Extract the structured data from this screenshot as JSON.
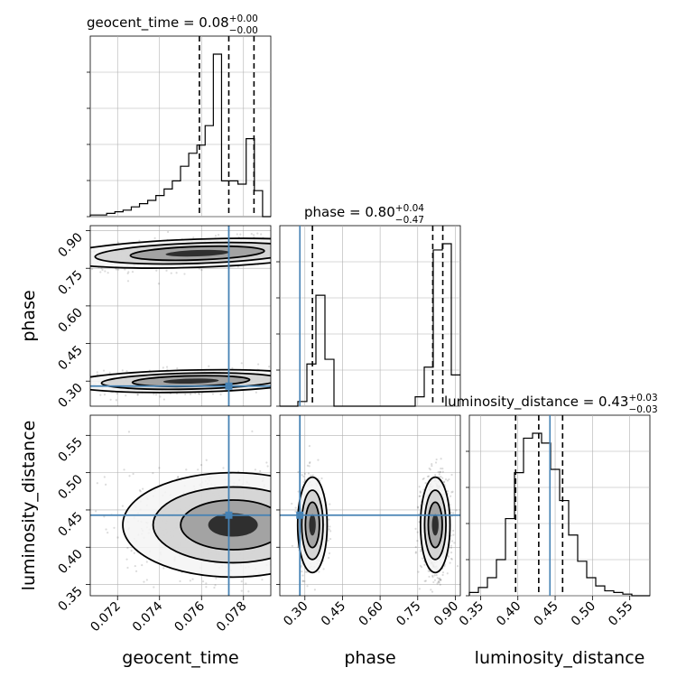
{
  "colors": {
    "truth": "#4682b4",
    "line": "#000000",
    "grid": "#b0b0b0"
  },
  "chart_data": {
    "type": "corner",
    "parameters": [
      {
        "name": "geocent_time",
        "label": "geocent_time",
        "range": [
          0.0707,
          0.0793
        ],
        "ticks": [
          0.072,
          0.074,
          0.076,
          0.078
        ],
        "tick_labels": [
          "0.072",
          "0.074",
          "0.076",
          "0.078"
        ],
        "truth": 0.0773,
        "quantiles": [
          0.0759,
          0.0773,
          0.0785
        ],
        "title_main": "geocent_time = 0.08",
        "title_sup": "+0.00",
        "title_sub": "−0.00"
      },
      {
        "name": "phase",
        "label": "phase",
        "range": [
          0.2,
          0.92
        ],
        "ticks": [
          0.3,
          0.45,
          0.6,
          0.75,
          0.9
        ],
        "tick_labels": [
          "0.30",
          "0.45",
          "0.60",
          "0.75",
          "0.90"
        ],
        "truth": 0.28,
        "quantiles": [
          0.33,
          0.81,
          0.85
        ],
        "title_main": "phase = 0.80",
        "title_sup": "+0.04",
        "title_sub": "−0.47"
      },
      {
        "name": "luminosity_distance",
        "label": "luminosity_distance",
        "range": [
          0.335,
          0.577
        ],
        "ticks": [
          0.35,
          0.4,
          0.45,
          0.5,
          0.55
        ],
        "tick_labels": [
          "0.35",
          "0.40",
          "0.45",
          "0.50",
          "0.55"
        ],
        "truth": 0.443,
        "quantiles": [
          0.397,
          0.428,
          0.46
        ],
        "title_main": "luminosity_distance = 0.43",
        "title_sup": "+0.03",
        "title_sub": "−0.03"
      }
    ],
    "hist_1d": {
      "geocent_time": {
        "bins": 22,
        "counts": [
          1,
          1,
          2,
          3,
          4,
          6,
          8,
          10,
          13,
          17,
          22,
          31,
          39,
          44,
          56,
          100,
          22,
          22,
          20,
          48,
          16,
          0
        ]
      },
      "phase": {
        "bins": 20,
        "counts": [
          0,
          0,
          3,
          27,
          71,
          30,
          0,
          0,
          0,
          0,
          0,
          0,
          0,
          0,
          0,
          6,
          25,
          100,
          104,
          20
        ]
      },
      "luminosity_distance": {
        "bins": 20,
        "counts": [
          2,
          5,
          11,
          22,
          47,
          75,
          96,
          99,
          93,
          77,
          58,
          37,
          21,
          11,
          6,
          3,
          2,
          1,
          0,
          0
        ]
      }
    },
    "hist_2d": [
      {
        "x": "geocent_time",
        "y": "phase",
        "blobs": [
          {
            "center": [
              0.0758,
              0.81
            ],
            "spread": [
              0.0032,
              0.028
            ],
            "tilt": 0.55,
            "weight": 1.0
          },
          {
            "center": [
              0.0755,
              0.3
            ],
            "spread": [
              0.0028,
              0.022
            ],
            "tilt": 0.4,
            "weight": 0.7
          }
        ]
      },
      {
        "x": "geocent_time",
        "y": "luminosity_distance",
        "blobs": [
          {
            "center": [
              0.0775,
              0.43
            ],
            "spread": [
              0.0025,
              0.035
            ],
            "tilt": 0.0,
            "weight": 1.0
          }
        ]
      },
      {
        "x": "phase",
        "y": "luminosity_distance",
        "blobs": [
          {
            "center": [
              0.33,
              0.43
            ],
            "spread": [
              0.028,
              0.032
            ],
            "tilt": 0.0,
            "weight": 0.6
          },
          {
            "center": [
              0.82,
              0.43
            ],
            "spread": [
              0.028,
              0.032
            ],
            "tilt": 0.0,
            "weight": 1.0
          }
        ]
      }
    ],
    "grid": true
  }
}
